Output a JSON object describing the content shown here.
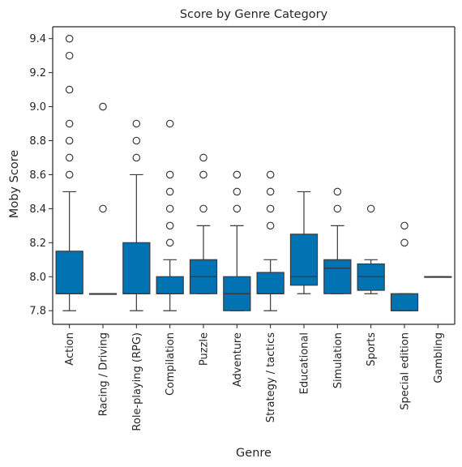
{
  "chart_data": {
    "type": "box",
    "title": "Score by Genre Category",
    "xlabel": "Genre",
    "ylabel": "Moby Score",
    "ylim": [
      7.72,
      9.47
    ],
    "yticks": [
      7.8,
      8.0,
      8.2,
      8.4,
      8.6,
      8.8,
      9.0,
      9.2,
      9.4
    ],
    "ytick_labels": [
      "7.8",
      "8.0",
      "8.2",
      "8.4",
      "8.6",
      "8.8",
      "9.0",
      "9.2",
      "9.4"
    ],
    "grid": false,
    "box_color": "#0173b2",
    "categories": [
      {
        "name": "Action",
        "whisker_low": 7.8,
        "q1": 7.9,
        "median": 7.9,
        "q3": 8.15,
        "whisker_high": 8.5,
        "outliers": [
          8.6,
          8.7,
          8.8,
          8.9,
          9.1,
          9.3,
          9.4
        ]
      },
      {
        "name": "Racing / Driving",
        "whisker_low": 7.9,
        "q1": 7.9,
        "median": 7.9,
        "q3": 7.9,
        "whisker_high": 7.9,
        "outliers": [
          8.4,
          9.0
        ]
      },
      {
        "name": "Role-playing (RPG)",
        "whisker_low": 7.8,
        "q1": 7.9,
        "median": 7.9,
        "q3": 8.2,
        "whisker_high": 8.6,
        "outliers": [
          8.7,
          8.8,
          8.9
        ]
      },
      {
        "name": "Compilation",
        "whisker_low": 7.8,
        "q1": 7.9,
        "median": 7.9,
        "q3": 8.0,
        "whisker_high": 8.1,
        "outliers": [
          8.2,
          8.3,
          8.4,
          8.5,
          8.6,
          8.9
        ]
      },
      {
        "name": "Puzzle",
        "whisker_low": 7.9,
        "q1": 7.9,
        "median": 8.0,
        "q3": 8.1,
        "whisker_high": 8.3,
        "outliers": [
          8.4,
          8.6,
          8.7
        ]
      },
      {
        "name": "Adventure",
        "whisker_low": 7.8,
        "q1": 7.8,
        "median": 7.9,
        "q3": 8.0,
        "whisker_high": 8.3,
        "outliers": [
          8.4,
          8.5,
          8.6
        ]
      },
      {
        "name": "Strategy / tactics",
        "whisker_low": 7.8,
        "q1": 7.9,
        "median": 7.9,
        "q3": 8.025,
        "whisker_high": 8.1,
        "outliers": [
          8.3,
          8.4,
          8.5,
          8.6
        ]
      },
      {
        "name": "Educational",
        "whisker_low": 7.9,
        "q1": 7.95,
        "median": 8.0,
        "q3": 8.25,
        "whisker_high": 8.5,
        "outliers": []
      },
      {
        "name": "Simulation",
        "whisker_low": 7.9,
        "q1": 7.9,
        "median": 8.05,
        "q3": 8.1,
        "whisker_high": 8.3,
        "outliers": [
          8.4,
          8.5
        ]
      },
      {
        "name": "Sports",
        "whisker_low": 7.9,
        "q1": 7.92,
        "median": 8.0,
        "q3": 8.075,
        "whisker_high": 8.1,
        "outliers": [
          8.4
        ]
      },
      {
        "name": "Special edition",
        "whisker_low": 7.8,
        "q1": 7.8,
        "median": 7.8,
        "q3": 7.9,
        "whisker_high": 7.9,
        "outliers": [
          8.2,
          8.3
        ]
      },
      {
        "name": "Gambling",
        "whisker_low": 8.0,
        "q1": 8.0,
        "median": 8.0,
        "q3": 8.0,
        "whisker_high": 8.0,
        "outliers": []
      }
    ]
  }
}
